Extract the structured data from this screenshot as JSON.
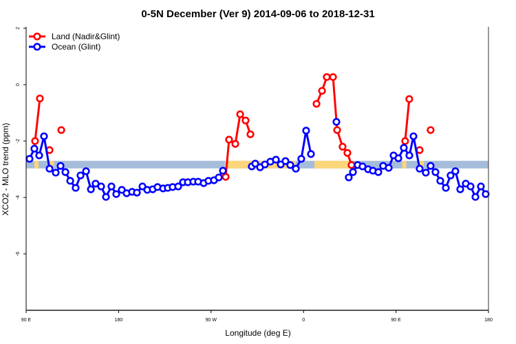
{
  "chart_data": {
    "type": "line",
    "title": "0-5N December (Ver 9)   2014-09-06 to 2018-12-31",
    "xlabel": "Longitude (deg E)",
    "ylabel": "XCO2 - MLO trend (ppm)",
    "xlim": [
      90,
      540
    ],
    "ylim": [
      -8,
      2.05
    ],
    "x_note": "continuous longitude axis: 90E=90, 180=180, 90W=270, 0=360, 90E=450, 180=540",
    "xticks": [
      {
        "value": 90,
        "label": "90 E"
      },
      {
        "value": 180,
        "label": "180"
      },
      {
        "value": 270,
        "label": "90 W"
      },
      {
        "value": 360,
        "label": "0"
      },
      {
        "value": 450,
        "label": "90 E"
      },
      {
        "value": 540,
        "label": "180"
      }
    ],
    "yticks": [
      {
        "value": 2,
        "label": "2"
      },
      {
        "value": 0,
        "label": "0"
      },
      {
        "value": -2,
        "label": "-2"
      },
      {
        "value": -4,
        "label": "-4"
      },
      {
        "value": -6,
        "label": "-6"
      }
    ],
    "grid": false,
    "legend_position": "top-left",
    "mask_band": {
      "y_range": [
        -2.97,
        -2.7
      ],
      "ocean_color": "#a5bddb",
      "land_color": "#fdd57a",
      "land_x_ranges": [
        [
          98,
          102
        ],
        [
          111,
          117
        ],
        [
          283.5,
          352.5
        ],
        [
          370.6,
          406
        ],
        [
          456,
          460
        ],
        [
          472,
          477
        ]
      ]
    },
    "series": [
      {
        "name": "Land (Nadir&Glint)",
        "color": "#ff0000",
        "segments": [
          [
            [
              98.7,
              -2.0
            ],
            [
              103.4,
              -0.49
            ]
          ],
          [
            [
              112.8,
              -2.32
            ]
          ],
          [
            [
              124.2,
              -1.61
            ]
          ],
          [
            [
              284.2,
              -3.27
            ],
            [
              287.5,
              -1.95
            ],
            [
              293.6,
              -2.1
            ],
            [
              298.3,
              -1.05
            ],
            [
              303.6,
              -1.27
            ],
            [
              308.3,
              -1.76
            ]
          ],
          [
            [
              372.6,
              -0.68
            ],
            [
              378.0,
              -0.22
            ],
            [
              382.6,
              0.27
            ],
            [
              388.7,
              0.27
            ],
            [
              392.7,
              -1.61
            ],
            [
              398.0,
              -2.2
            ],
            [
              402.7,
              -2.42
            ],
            [
              406.7,
              -2.85
            ]
          ],
          [
            [
              458.9,
              -2.0
            ],
            [
              462.9,
              -0.51
            ]
          ],
          [
            [
              473.0,
              -2.32
            ]
          ],
          [
            [
              483.7,
              -1.61
            ]
          ]
        ]
      },
      {
        "name": "Ocean (Glint)",
        "color": "#0000ff",
        "segments": [
          [
            [
              93.3,
              -2.63
            ],
            [
              98.0,
              -2.27
            ],
            [
              102.7,
              -2.51
            ],
            [
              107.4,
              -1.83
            ],
            [
              112.8,
              -2.98
            ],
            [
              118.8,
              -3.12
            ],
            [
              123.5,
              -2.88
            ],
            [
              128.2,
              -3.1
            ],
            [
              132.9,
              -3.41
            ],
            [
              138.2,
              -3.66
            ],
            [
              142.9,
              -3.22
            ],
            [
              148.3,
              -3.07
            ],
            [
              153.0,
              -3.71
            ],
            [
              157.6,
              -3.51
            ],
            [
              163.0,
              -3.61
            ],
            [
              167.7,
              -3.98
            ],
            [
              173.0,
              -3.61
            ],
            [
              177.7,
              -3.88
            ],
            [
              183.1,
              -3.73
            ],
            [
              187.8,
              -3.85
            ],
            [
              193.1,
              -3.8
            ],
            [
              197.8,
              -3.83
            ],
            [
              203.2,
              -3.61
            ],
            [
              207.9,
              -3.73
            ],
            [
              213.2,
              -3.71
            ],
            [
              217.9,
              -3.63
            ],
            [
              223.3,
              -3.68
            ],
            [
              227.9,
              -3.66
            ],
            [
              232.6,
              -3.63
            ],
            [
              238.0,
              -3.61
            ],
            [
              242.7,
              -3.46
            ],
            [
              247.4,
              -3.46
            ],
            [
              252.7,
              -3.44
            ],
            [
              257.4,
              -3.44
            ],
            [
              262.8,
              -3.49
            ],
            [
              267.4,
              -3.41
            ],
            [
              272.8,
              -3.39
            ],
            [
              277.5,
              -3.29
            ],
            [
              281.5,
              -3.05
            ]
          ],
          [
            [
              309.6,
              -2.9
            ],
            [
              313.0,
              -2.8
            ],
            [
              317.7,
              -2.93
            ],
            [
              322.4,
              -2.83
            ],
            [
              327.7,
              -2.73
            ],
            [
              333.1,
              -2.66
            ],
            [
              337.8,
              -2.83
            ],
            [
              342.4,
              -2.71
            ],
            [
              347.1,
              -2.85
            ],
            [
              352.5,
              -2.98
            ],
            [
              357.8,
              -2.63
            ],
            [
              362.5,
              -1.63
            ],
            [
              367.2,
              -2.46
            ]
          ],
          [
            [
              392.0,
              -1.32
            ]
          ],
          [
            [
              404.0,
              -3.29
            ],
            [
              408.1,
              -3.1
            ],
            [
              412.7,
              -2.85
            ],
            [
              417.4,
              -2.9
            ],
            [
              422.8,
              -3.0
            ],
            [
              427.5,
              -3.05
            ],
            [
              432.8,
              -3.1
            ],
            [
              437.5,
              -2.88
            ],
            [
              442.9,
              -2.95
            ],
            [
              447.6,
              -2.51
            ],
            [
              452.3,
              -2.61
            ],
            [
              457.6,
              -2.24
            ],
            [
              463.0,
              -2.51
            ],
            [
              467.0,
              -1.83
            ],
            [
              473.0,
              -2.98
            ],
            [
              479.0,
              -3.12
            ],
            [
              483.7,
              -2.88
            ],
            [
              488.4,
              -3.1
            ],
            [
              493.1,
              -3.41
            ],
            [
              498.5,
              -3.66
            ],
            [
              503.1,
              -3.22
            ],
            [
              507.8,
              -3.07
            ],
            [
              512.5,
              -3.71
            ],
            [
              517.9,
              -3.51
            ],
            [
              522.6,
              -3.61
            ],
            [
              527.3,
              -3.98
            ],
            [
              532.6,
              -3.61
            ],
            [
              537.3,
              -3.88
            ]
          ]
        ]
      }
    ]
  }
}
